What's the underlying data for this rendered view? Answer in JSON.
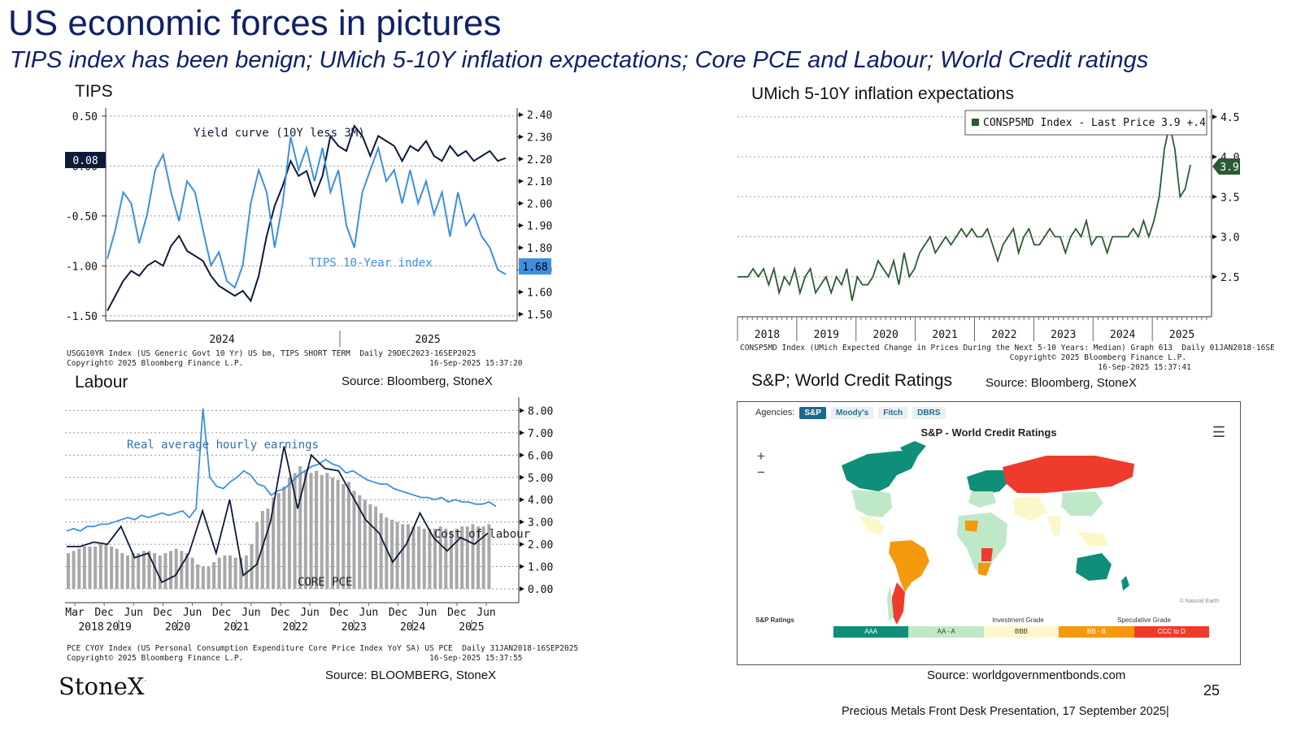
{
  "slide": {
    "title": "US  economic forces in pictures",
    "subtitle": "TIPS index has been benign; UMich 5-10Y inflation expectations; Core PCE and Labour; World Credit ratings",
    "page_number": "25",
    "footer": "Precious Metals Front Desk Presentation, 17 September 2025|",
    "logo_text": "StoneX",
    "logo_mark": "·"
  },
  "panels": {
    "tips": {
      "title": "TIPS",
      "source": "Source: Bloomberg, StoneX",
      "footnote_1": "USGG10YR Index (US Generic Govt 10 Yr) US bm, TIPS SHORT TERM  Daily 29DEC2023-16SEP2025",
      "footnote_2": "Copyright© 2025 Bloomberg Finance L.P.                                        16-Sep-2025 15:37:20"
    },
    "umich": {
      "title": "UMich 5-10Y inflation expectations",
      "source": "Source: Bloomberg, StoneX",
      "footnote_1": "CONSP5MD Index (UMich Expected Change in Prices During the Next 5-10 Years: Median) Graph 613  Daily 01JAN2018-16SE",
      "footnote_2": "                                                          Copyright© 2025 Bloomberg Finance L.P.",
      "footnote_3": "                                                                             16-Sep-2025 15:37:41"
    },
    "labour": {
      "title": "Labour",
      "source": "Source: BLOOMBERG, StoneX",
      "footnote_1": "PCE CYOY Index (US Personal Consumption Expenditure Core Price Index YoY SA) US PCE  Daily 31JAN2018-16SEP2025",
      "footnote_2": "Copyright© 2025 Bloomberg Finance L.P.                                        16-Sep-2025 15:37:55"
    },
    "credit": {
      "title": "S&P; World Credit Ratings",
      "source": "Source: Bloomberg, StoneX",
      "source_below": "Source: worldgovernmentbonds.com",
      "agencies_label": "Agencies:",
      "agencies": [
        "S&P",
        "Moody's",
        "Fitch",
        "DBRS"
      ],
      "map_title": "S&P - World Credit Ratings",
      "zoom_in": "+",
      "zoom_out": "−",
      "menu_icon": "hamburger-menu-icon",
      "map_credit": "© Natural Earth",
      "legend_label": "S&P Ratings",
      "investment_grade": "Investment Grade",
      "speculative_grade": "Speculative Grade",
      "legend": [
        {
          "label": "AAA",
          "color": "#0f8f7a"
        },
        {
          "label": "AA - A",
          "color": "#bfe8c8"
        },
        {
          "label": "BBB",
          "color": "#fbf7c9"
        },
        {
          "label": "BB - B",
          "color": "#f59a0c"
        },
        {
          "label": "CCC to D",
          "color": "#ef3b2c"
        }
      ]
    }
  },
  "chart_data": [
    {
      "id": "tips",
      "type": "line",
      "x_tick_labels": [
        "2024",
        "2025"
      ],
      "left_axis": {
        "ticks": [
          "0.50",
          "0.00",
          "-0.50",
          "-1.00",
          "-1.50"
        ],
        "range": [
          -1.55,
          0.58
        ]
      },
      "right_axis": {
        "ticks": [
          "2.40",
          "2.30",
          "2.20",
          "2.10",
          "2.00",
          "1.90",
          "1.80",
          "1.70",
          "1.60",
          "1.50"
        ],
        "range": [
          1.47,
          2.43
        ]
      },
      "series": [
        {
          "name": "Yield curve (10Y less 3M)",
          "axis": "left",
          "color": "#0d1a3a",
          "last_label": "0.08",
          "values": [
            -1.45,
            -1.3,
            -1.15,
            -1.05,
            -1.1,
            -1.0,
            -0.95,
            -1.0,
            -0.8,
            -0.7,
            -0.85,
            -0.9,
            -0.95,
            -1.1,
            -1.2,
            -1.25,
            -1.3,
            -1.25,
            -1.35,
            -1.1,
            -0.7,
            -0.4,
            -0.2,
            0.05,
            -0.1,
            -0.05,
            -0.3,
            -0.1,
            0.3,
            0.2,
            0.15,
            0.4,
            0.3,
            0.1,
            0.3,
            0.25,
            0.2,
            0.05,
            0.2,
            0.15,
            0.25,
            0.1,
            0.05,
            0.2,
            0.1,
            0.15,
            0.05,
            0.1,
            0.15,
            0.05,
            0.08
          ]
        },
        {
          "name": "TIPS 10-Year index",
          "axis": "right",
          "color": "#3d8fe0",
          "last_label": "1.68",
          "values": [
            1.75,
            1.88,
            2.05,
            2.0,
            1.82,
            1.95,
            2.15,
            2.22,
            2.05,
            1.92,
            2.1,
            2.05,
            1.88,
            1.72,
            1.78,
            1.65,
            1.62,
            1.72,
            2.0,
            2.15,
            2.05,
            1.8,
            2.0,
            2.3,
            2.15,
            2.25,
            2.1,
            2.25,
            2.05,
            2.15,
            1.9,
            1.8,
            2.05,
            2.15,
            2.25,
            2.1,
            2.15,
            2.0,
            2.15,
            2.0,
            2.1,
            1.95,
            2.05,
            1.85,
            2.05,
            1.9,
            1.95,
            1.85,
            1.8,
            1.7,
            1.68
          ]
        }
      ],
      "annotations": [
        "Yield curve (10Y less 3M)",
        "TIPS 10-Year index"
      ]
    },
    {
      "id": "umich",
      "type": "line",
      "x_tick_labels": [
        "2018",
        "2019",
        "2020",
        "2021",
        "2022",
        "2023",
        "2024",
        "2025"
      ],
      "y_axis": {
        "ticks": [
          "4.5",
          "4.0",
          "3.5",
          "3.0",
          "2.5"
        ],
        "range": [
          2.0,
          4.6
        ]
      },
      "legend": "CONSP5MD Index - Last Price 3.9 +.4",
      "series": [
        {
          "name": "CONSP5MD Index",
          "color": "#2e5a32",
          "last_label": "3.9",
          "values": [
            2.5,
            2.5,
            2.5,
            2.6,
            2.5,
            2.6,
            2.4,
            2.6,
            2.3,
            2.5,
            2.4,
            2.6,
            2.3,
            2.5,
            2.6,
            2.3,
            2.4,
            2.5,
            2.3,
            2.5,
            2.4,
            2.6,
            2.2,
            2.5,
            2.4,
            2.4,
            2.5,
            2.7,
            2.6,
            2.5,
            2.7,
            2.4,
            2.8,
            2.5,
            2.6,
            2.8,
            2.9,
            3.0,
            2.8,
            2.9,
            3.0,
            2.9,
            3.0,
            3.1,
            3.0,
            3.1,
            3.0,
            3.0,
            3.1,
            2.9,
            2.7,
            2.9,
            3.0,
            3.1,
            2.8,
            3.0,
            3.1,
            2.9,
            2.9,
            3.0,
            3.1,
            3.0,
            3.0,
            2.8,
            3.0,
            3.1,
            3.0,
            3.2,
            2.9,
            3.0,
            3.0,
            2.8,
            3.0,
            3.0,
            3.0,
            3.0,
            3.1,
            3.0,
            3.2,
            3.0,
            3.2,
            3.5,
            4.1,
            4.4,
            4.1,
            3.5,
            3.6,
            3.9
          ]
        }
      ]
    },
    {
      "id": "labour",
      "type": "line",
      "x_tick_labels": [
        "Mar",
        "Dec",
        "Jun",
        "Dec",
        "Jun",
        "Dec",
        "Jun",
        "Dec",
        "Jun",
        "Dec",
        "Jun",
        "Dec",
        "Jun",
        "Dec",
        "Jun"
      ],
      "x_year_labels": [
        "2018",
        "2019",
        "2020",
        "2021",
        "2022",
        "2023",
        "2024",
        "2025"
      ],
      "y_axis": {
        "ticks": [
          "8.00",
          "7.00",
          "6.00",
          "5.00",
          "4.00",
          "3.00",
          "2.00",
          "1.00",
          "0.00"
        ],
        "range": [
          0,
          8.6
        ]
      },
      "annotations": [
        "Real average hourly earnings",
        "Cost of labour",
        "CORE PCE"
      ],
      "series": [
        {
          "name": "CORE PCE",
          "type": "bar",
          "color": "#a8a8a8",
          "values": [
            1.6,
            1.7,
            1.8,
            1.9,
            1.9,
            1.9,
            2.0,
            2.0,
            1.9,
            1.8,
            1.6,
            1.5,
            1.6,
            1.6,
            1.7,
            1.7,
            1.6,
            1.5,
            1.6,
            1.7,
            1.8,
            1.7,
            1.6,
            1.4,
            1.1,
            1.0,
            1.0,
            1.2,
            1.4,
            1.5,
            1.5,
            1.4,
            1.4,
            1.5,
            2.0,
            3.0,
            3.5,
            3.6,
            4.1,
            4.3,
            4.6,
            5.0,
            5.2,
            5.5,
            5.3,
            5.2,
            5.3,
            5.1,
            5.2,
            5.0,
            4.9,
            4.7,
            4.8,
            4.4,
            4.2,
            4.0,
            3.8,
            3.7,
            3.4,
            3.2,
            3.1,
            3.0,
            2.9,
            2.9,
            2.8,
            2.8,
            2.7,
            2.7,
            2.7,
            2.8,
            2.7,
            2.6,
            2.7,
            2.8,
            2.8,
            2.9,
            2.8,
            2.8,
            2.9
          ]
        },
        {
          "name": "Real average hourly earnings",
          "type": "line",
          "color": "#3d8fe0",
          "values": [
            2.6,
            2.7,
            2.6,
            2.8,
            2.8,
            2.9,
            2.9,
            3.0,
            3.1,
            3.2,
            3.1,
            3.3,
            3.2,
            3.3,
            3.4,
            3.3,
            3.4,
            3.5,
            3.2,
            3.6,
            8.1,
            5.0,
            4.6,
            4.5,
            4.8,
            5.0,
            5.3,
            5.1,
            4.7,
            4.6,
            4.2,
            4.4,
            4.5,
            4.8,
            5.1,
            5.3,
            5.5,
            5.6,
            5.8,
            5.6,
            5.5,
            5.2,
            5.3,
            5.1,
            4.9,
            4.8,
            4.7,
            4.7,
            4.5,
            4.4,
            4.3,
            4.2,
            4.1,
            4.1,
            4.0,
            4.1,
            3.9,
            4.0,
            3.9,
            3.9,
            3.8,
            3.8,
            3.9,
            3.7
          ]
        },
        {
          "name": "Cost of labour",
          "type": "line",
          "color": "#0d1a3a",
          "values": [
            1.9,
            1.9,
            2.1,
            2.0,
            2.8,
            1.4,
            1.6,
            0.3,
            0.6,
            1.6,
            3.5,
            1.6,
            4.0,
            0.6,
            1.1,
            3.0,
            6.4,
            3.6,
            6.0,
            5.4,
            5.3,
            4.2,
            3.1,
            2.5,
            1.2,
            2.0,
            3.4,
            2.3,
            1.7,
            2.3,
            2.0,
            2.5
          ]
        }
      ]
    }
  ]
}
